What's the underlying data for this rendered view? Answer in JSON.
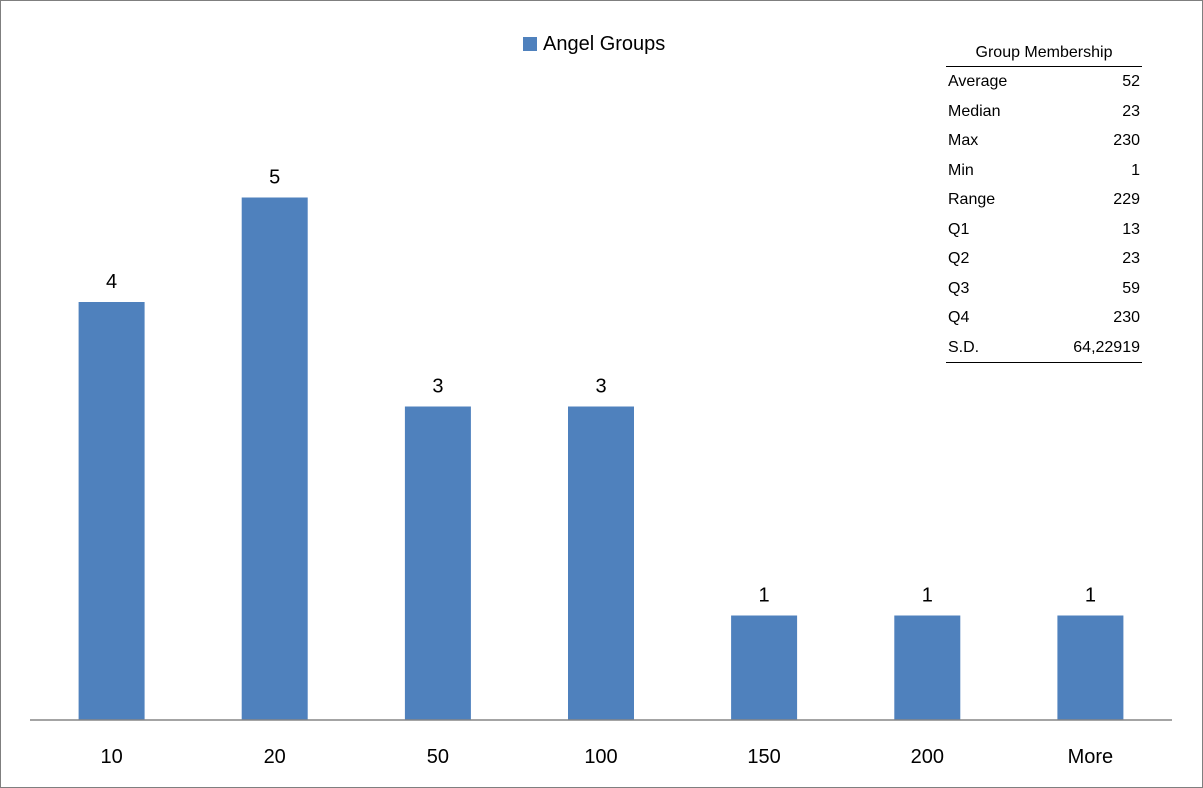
{
  "legend": {
    "label": "Angel Groups",
    "color": "#4F81BD"
  },
  "stats": {
    "title": "Group Membership",
    "rows": [
      {
        "label": "Average",
        "value": "52"
      },
      {
        "label": "Median",
        "value": "23"
      },
      {
        "label": "Max",
        "value": "230"
      },
      {
        "label": "Min",
        "value": "1"
      },
      {
        "label": "Range",
        "value": "229"
      },
      {
        "label": "Q1",
        "value": "13"
      },
      {
        "label": "Q2",
        "value": "23"
      },
      {
        "label": "Q3",
        "value": "59"
      },
      {
        "label": "Q4",
        "value": "230"
      },
      {
        "label": "S.D.",
        "value": "64,22919"
      }
    ]
  },
  "chart_data": {
    "type": "bar",
    "title": "",
    "xlabel": "",
    "ylabel": "",
    "categories": [
      "10",
      "20",
      "50",
      "100",
      "150",
      "200",
      "More"
    ],
    "series": [
      {
        "name": "Angel Groups",
        "values": [
          4,
          5,
          3,
          3,
          1,
          1,
          1
        ],
        "color": "#4F81BD"
      }
    ],
    "ylim": [
      0,
      6
    ],
    "data_labels": true,
    "grid": false,
    "legend_position": "top"
  }
}
